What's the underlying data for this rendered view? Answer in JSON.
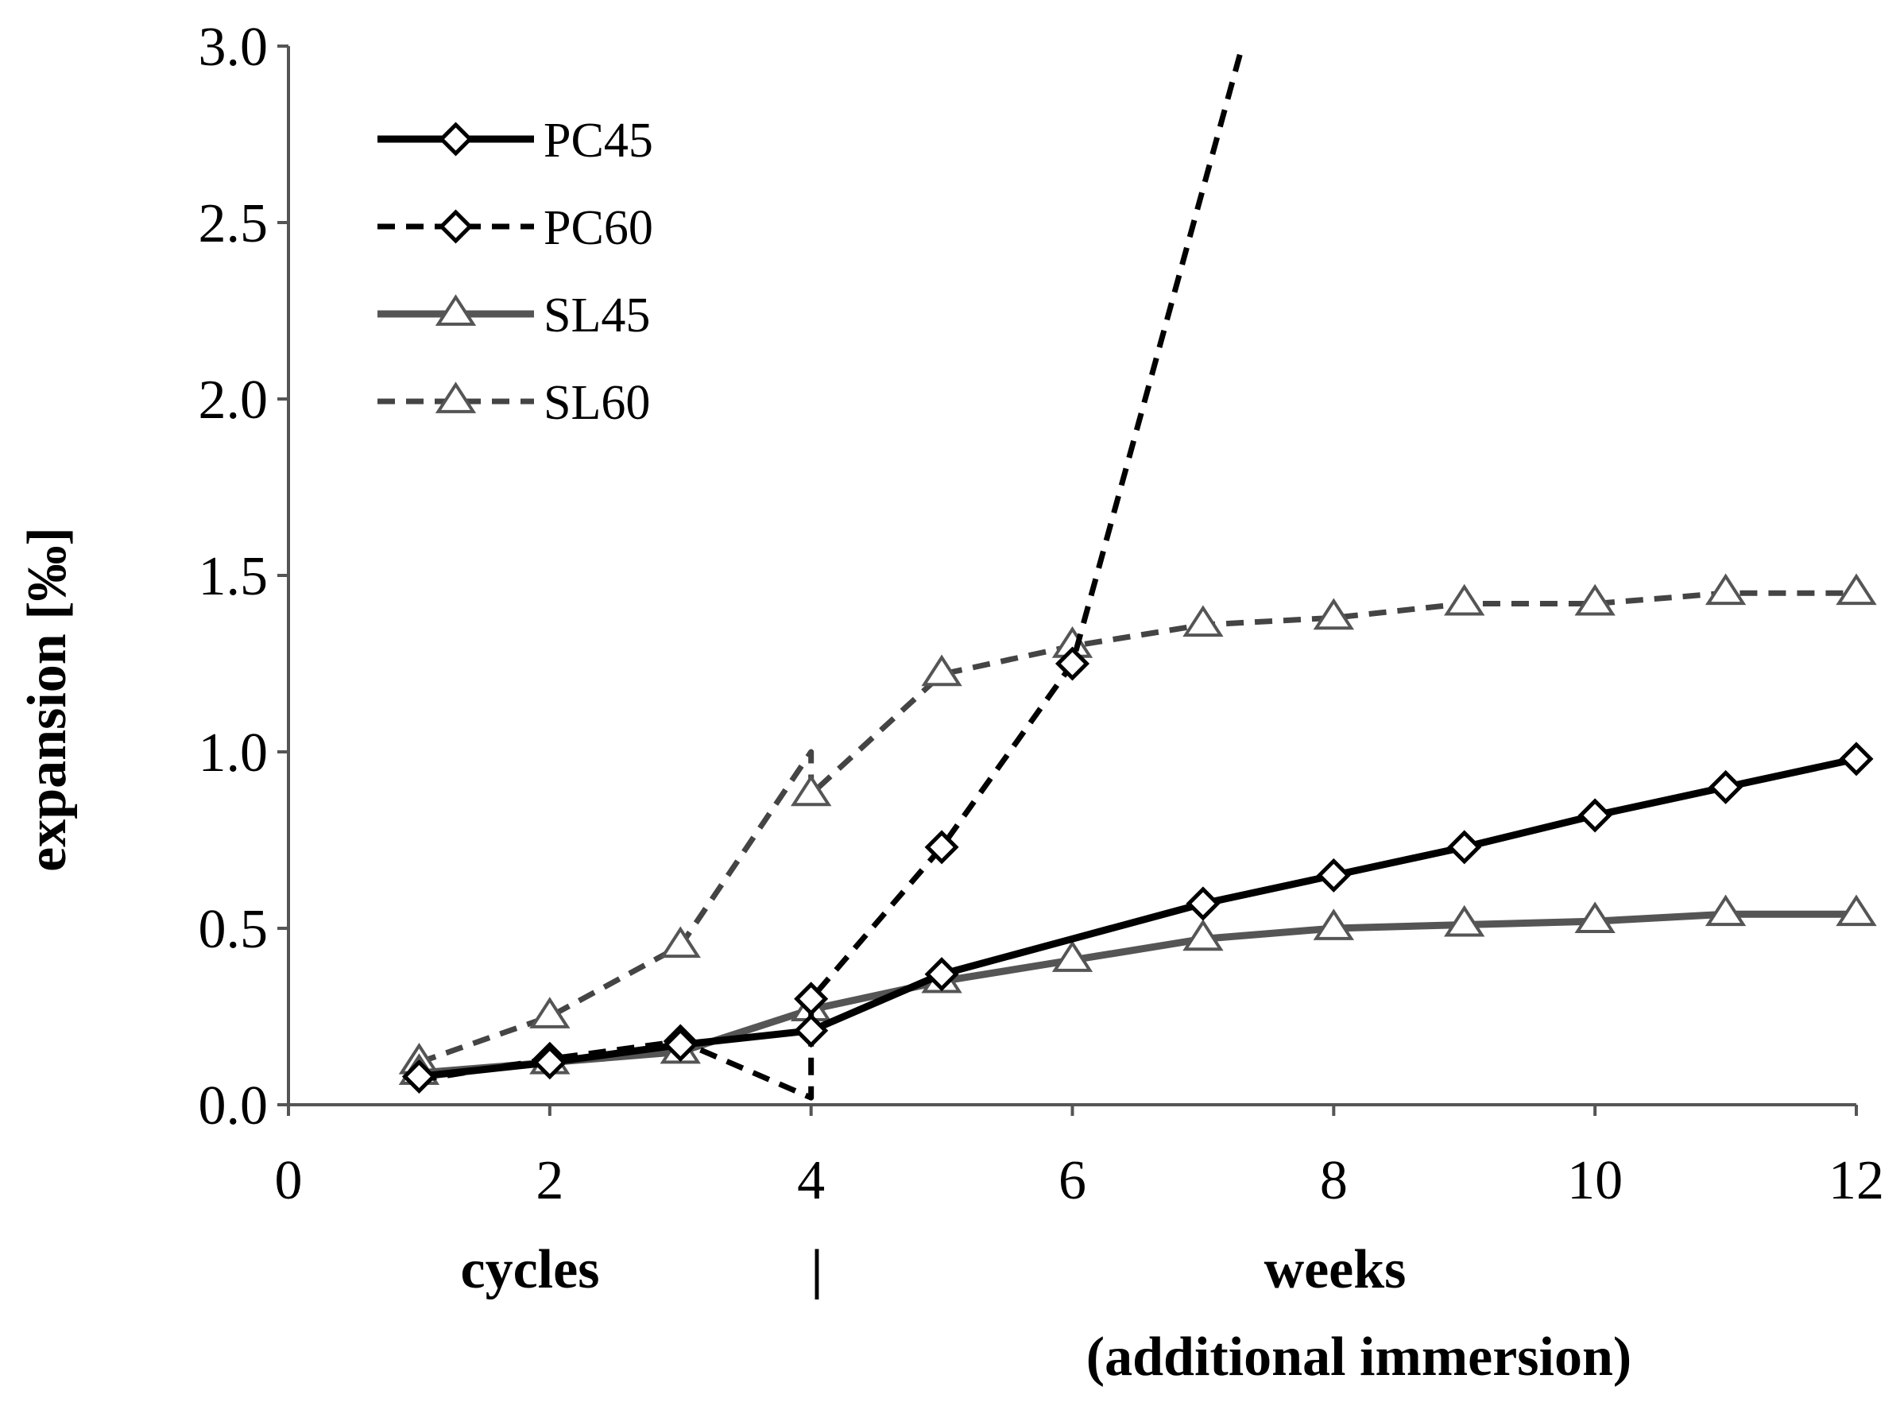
{
  "chart_data": {
    "type": "line",
    "title": "",
    "ylabel": "expansion [‰]",
    "xlabels": {
      "cycles": "cycles",
      "divider": "|",
      "weeks": "weeks",
      "weeks_sub": "(additional immersion)"
    },
    "xlim": [
      0,
      12
    ],
    "ylim": [
      0,
      3.0
    ],
    "xticks": [
      "0",
      "2",
      "4",
      "6",
      "8",
      "10",
      "12"
    ],
    "yticks": [
      "0.0",
      "0.5",
      "1.0",
      "1.5",
      "2.0",
      "2.5",
      "3.0"
    ],
    "grid": false,
    "legend_position": "top-left",
    "series": [
      {
        "name": "PC45",
        "style": "solid",
        "marker": "diamond",
        "color": "#000000",
        "x": [
          1,
          2,
          3,
          4,
          4,
          5,
          6,
          7,
          8,
          9,
          10,
          11,
          12
        ],
        "y": [
          0.08,
          0.12,
          0.17,
          0.21,
          0.21,
          0.37,
          0.47,
          0.57,
          0.65,
          0.73,
          0.82,
          0.9,
          0.98
        ],
        "markers_at": [
          0,
          1,
          2,
          3,
          5,
          7,
          8,
          9,
          10,
          11,
          12
        ]
      },
      {
        "name": "PC60",
        "style": "dashed",
        "marker": "diamond",
        "color": "#000000",
        "x": [
          1,
          2,
          3,
          4,
          4,
          5,
          6,
          7.3
        ],
        "y": [
          0.07,
          0.13,
          0.18,
          0.02,
          0.3,
          0.73,
          1.25,
          3.0
        ],
        "markers_at": [
          1,
          2,
          4,
          5,
          6
        ]
      },
      {
        "name": "SL45",
        "style": "solid",
        "marker": "triangle",
        "color": "#555555",
        "x": [
          1,
          2,
          3,
          4,
          4,
          5,
          6,
          7,
          8,
          9,
          10,
          11,
          12
        ],
        "y": [
          0.09,
          0.12,
          0.15,
          0.27,
          0.27,
          0.35,
          0.41,
          0.47,
          0.5,
          0.51,
          0.52,
          0.54,
          0.54
        ],
        "markers_at": [
          0,
          1,
          2,
          3,
          5,
          6,
          7,
          8,
          9,
          10,
          11,
          12
        ]
      },
      {
        "name": "SL60",
        "style": "dashed",
        "marker": "triangle",
        "color": "#444444",
        "x": [
          1,
          2,
          3,
          4,
          4,
          5,
          6,
          7,
          8,
          9,
          10,
          11,
          12
        ],
        "y": [
          0.12,
          0.25,
          0.45,
          1.0,
          0.88,
          1.22,
          1.3,
          1.36,
          1.38,
          1.42,
          1.42,
          1.45,
          1.45
        ],
        "markers_at": [
          0,
          1,
          2,
          4,
          5,
          6,
          7,
          8,
          9,
          10,
          11,
          12
        ]
      }
    ]
  }
}
